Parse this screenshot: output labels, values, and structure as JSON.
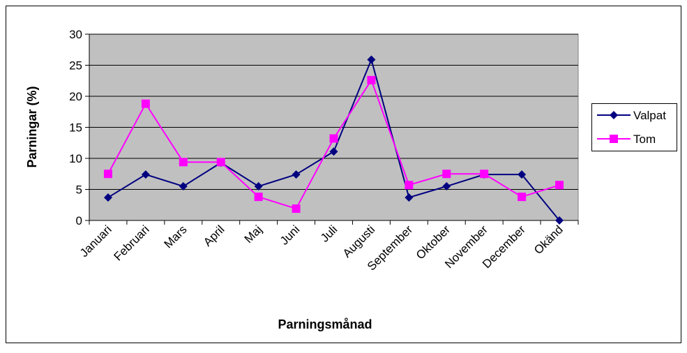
{
  "chart_data": {
    "type": "line",
    "xlabel": "Parningsmånad",
    "ylabel": "Parningar (%)",
    "categories": [
      "Januari",
      "Februari",
      "Mars",
      "April",
      "Maj",
      "Juni",
      "Juli",
      "Augusti",
      "September",
      "Oktober",
      "November",
      "December",
      "Okänd"
    ],
    "series": [
      {
        "name": "Valpat",
        "color": "#000080",
        "marker": "diamond",
        "values": [
          3.7,
          7.4,
          5.5,
          9.3,
          5.5,
          7.4,
          11.1,
          25.9,
          3.7,
          5.5,
          7.4,
          7.4,
          0
        ]
      },
      {
        "name": "Tom",
        "color": "#ff00ff",
        "marker": "square",
        "values": [
          7.5,
          18.8,
          9.4,
          9.4,
          3.8,
          1.9,
          13.2,
          22.6,
          5.7,
          7.5,
          7.5,
          3.8,
          5.7
        ]
      }
    ],
    "ylim": [
      0,
      30
    ],
    "yticks": [
      0,
      5,
      10,
      15,
      20,
      25,
      30
    ],
    "grid": true,
    "legend": "right"
  }
}
